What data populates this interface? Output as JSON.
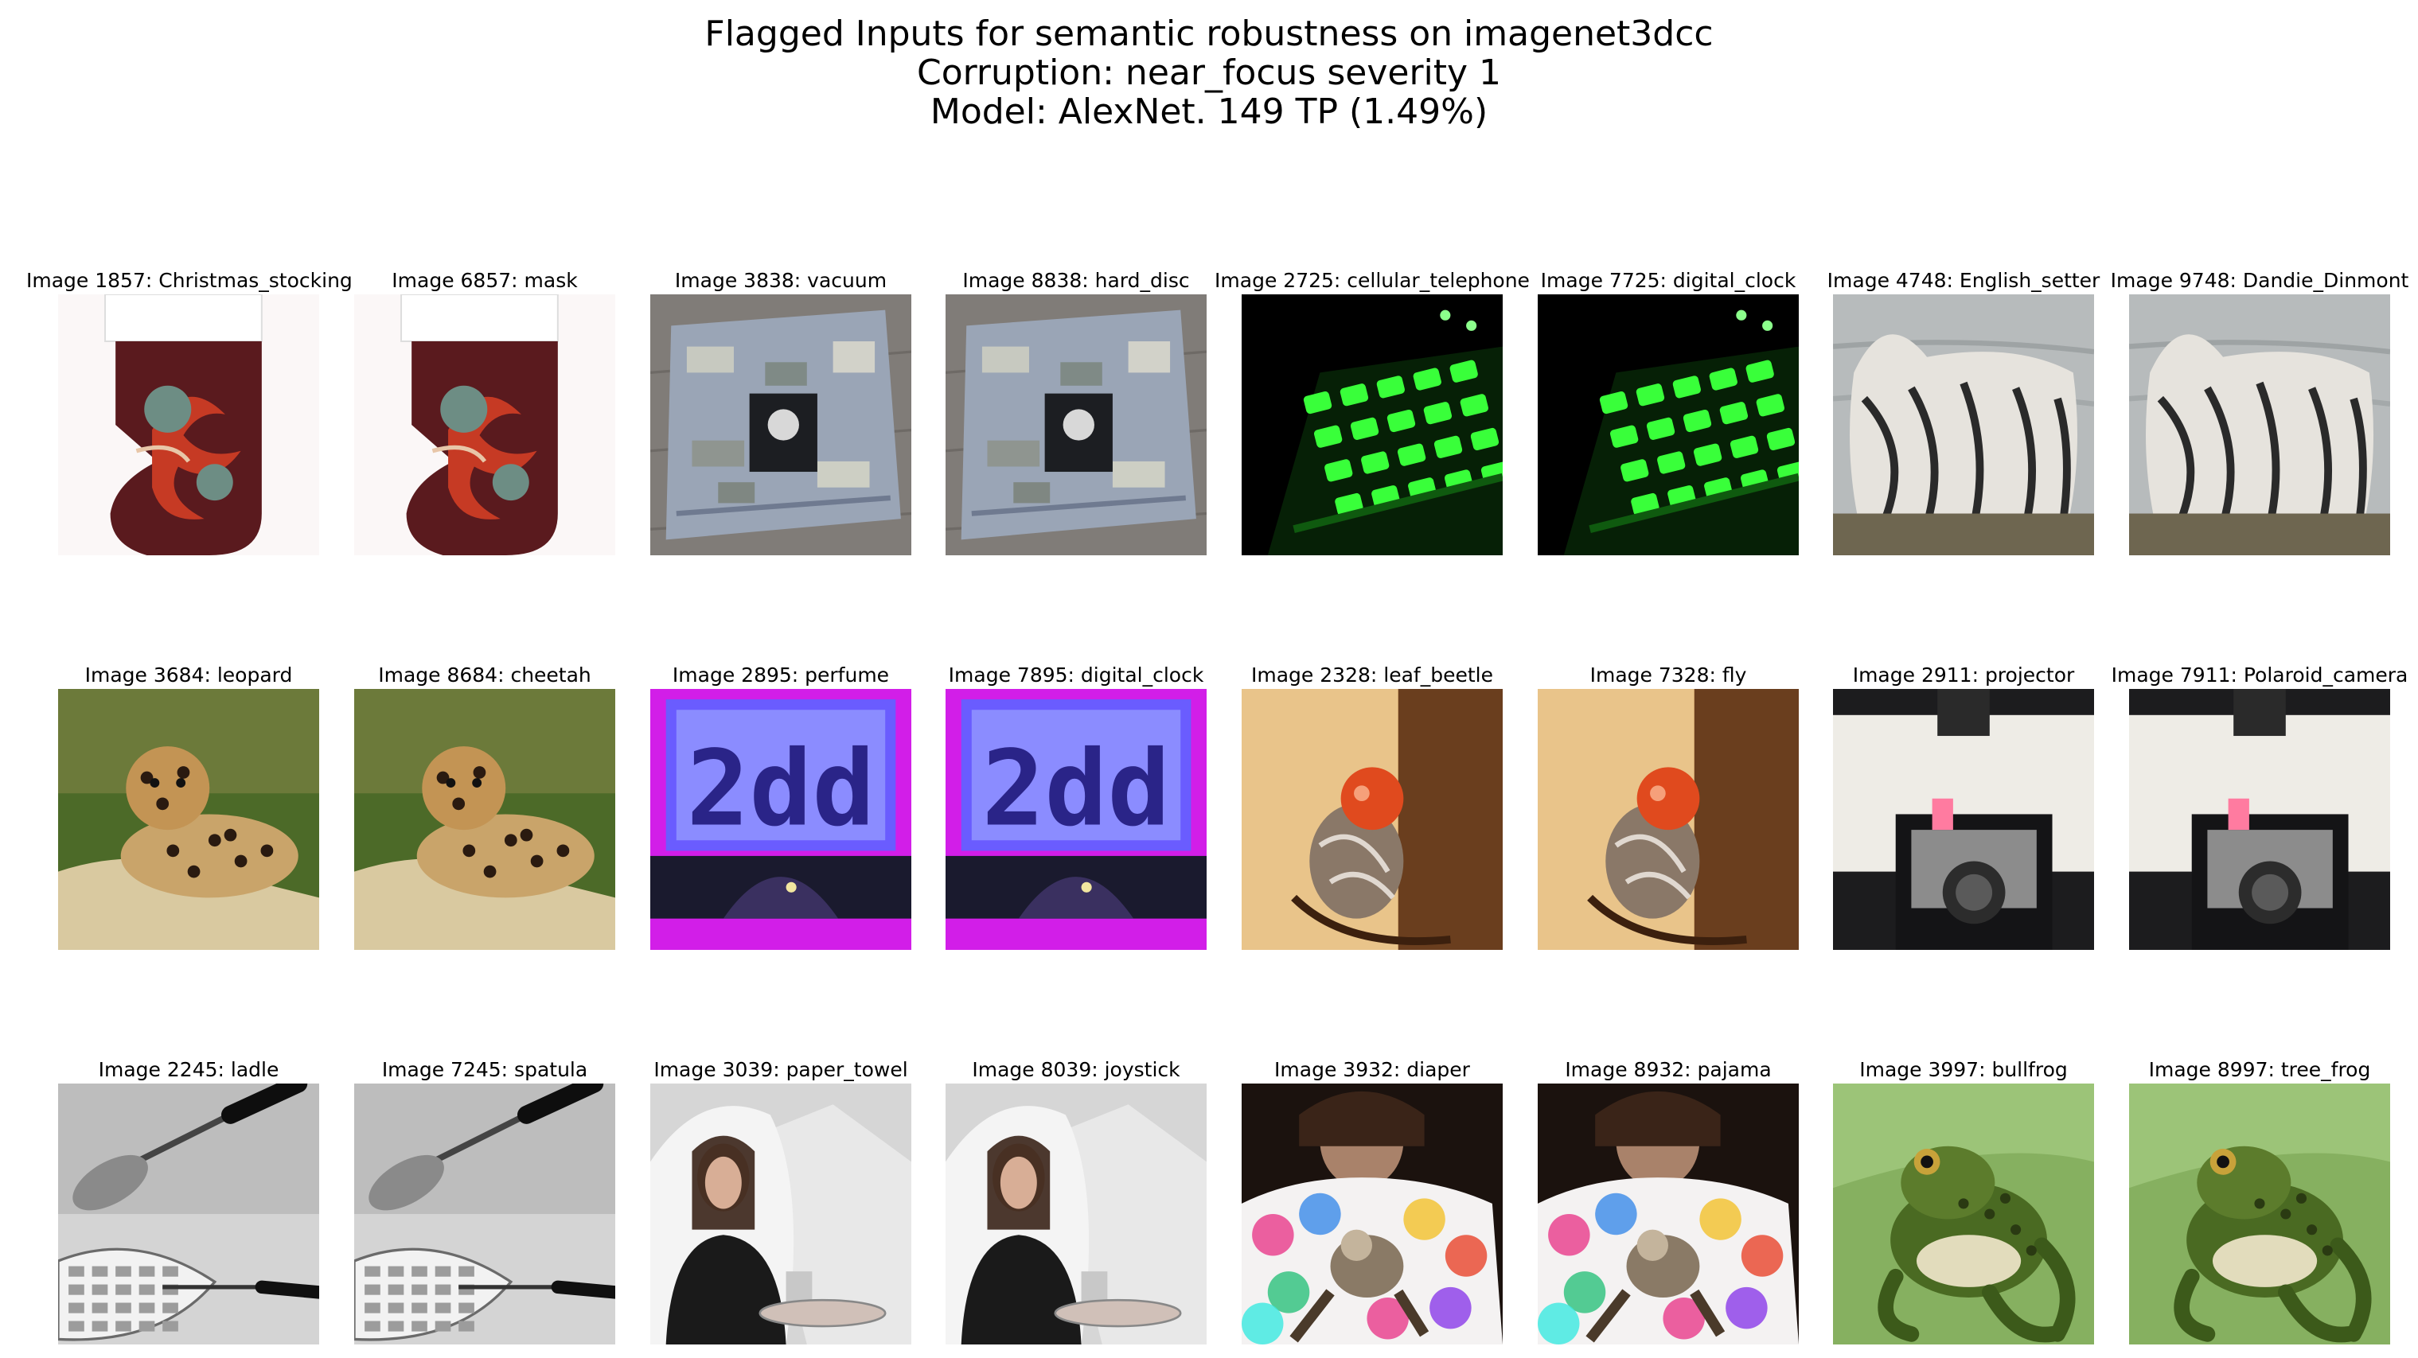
{
  "figure": {
    "title_lines": [
      "Flagged Inputs for semantic robustness on imagenet3dcc",
      "Corruption: near_focus severity 1",
      "Model: AlexNet. 149 TP (1.49%)"
    ]
  },
  "thumbnails": [
    {
      "caption": "Image 1857: Christmas_stocking",
      "scene": "stocking"
    },
    {
      "caption": "Image 6857: mask",
      "scene": "stocking"
    },
    {
      "caption": "Image 3838: vacuum",
      "scene": "wallet"
    },
    {
      "caption": "Image 8838: hard_disc",
      "scene": "wallet"
    },
    {
      "caption": "Image 2725: cellular_telephone",
      "scene": "keypad"
    },
    {
      "caption": "Image 7725: digital_clock",
      "scene": "keypad"
    },
    {
      "caption": "Image 4748: English_setter",
      "scene": "dog"
    },
    {
      "caption": "Image 9748: Dandie_Dinmont",
      "scene": "dog"
    },
    {
      "caption": "Image 3684: leopard",
      "scene": "leopard"
    },
    {
      "caption": "Image 8684: cheetah",
      "scene": "leopard"
    },
    {
      "caption": "Image 2895: perfume",
      "scene": "clock"
    },
    {
      "caption": "Image 7895: digital_clock",
      "scene": "clock"
    },
    {
      "caption": "Image 2328: leaf_beetle",
      "scene": "fly"
    },
    {
      "caption": "Image 7328: fly",
      "scene": "fly"
    },
    {
      "caption": "Image 2911: projector",
      "scene": "camera"
    },
    {
      "caption": "Image 7911: Polaroid_camera",
      "scene": "camera"
    },
    {
      "caption": "Image 2245: ladle",
      "scene": "waffle"
    },
    {
      "caption": "Image 7245: spatula",
      "scene": "waffle"
    },
    {
      "caption": "Image 3039: paper_towel",
      "scene": "person"
    },
    {
      "caption": "Image 8039: joystick",
      "scene": "person"
    },
    {
      "caption": "Image 3932: diaper",
      "scene": "tiedye"
    },
    {
      "caption": "Image 8932: pajama",
      "scene": "tiedye"
    },
    {
      "caption": "Image 3997: bullfrog",
      "scene": "frog"
    },
    {
      "caption": "Image 8997: tree_frog",
      "scene": "frog"
    }
  ]
}
